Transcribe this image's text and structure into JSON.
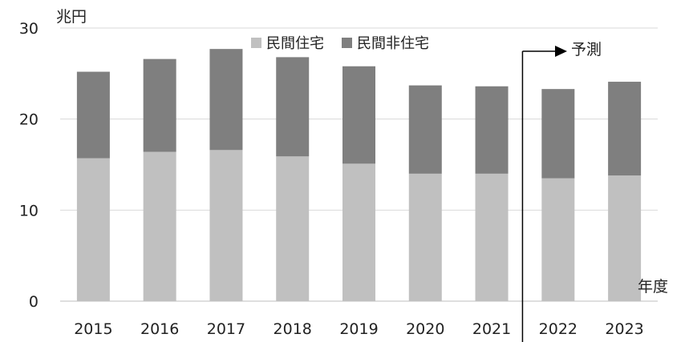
{
  "chart_data": {
    "type": "bar",
    "stacked": true,
    "unit_label": "兆円",
    "xlabel": "年度",
    "categories": [
      "2015",
      "2016",
      "2017",
      "2018",
      "2019",
      "2020",
      "2021",
      "2022",
      "2023"
    ],
    "series": [
      {
        "name": "民間住宅",
        "color": "#c0c0c0",
        "values": [
          15.7,
          16.4,
          16.6,
          15.9,
          15.1,
          14.0,
          14.0,
          13.5,
          13.8
        ]
      },
      {
        "name": "民間非住宅",
        "color": "#7f7f7f",
        "values": [
          9.5,
          10.2,
          11.1,
          10.9,
          10.7,
          9.7,
          9.6,
          9.8,
          10.3
        ]
      }
    ],
    "ylim": [
      0,
      30
    ],
    "yticks": [
      0,
      10,
      20,
      30
    ],
    "grid": true,
    "legend_position": "top",
    "forecast_label": "予測",
    "forecast_start": "2022"
  }
}
